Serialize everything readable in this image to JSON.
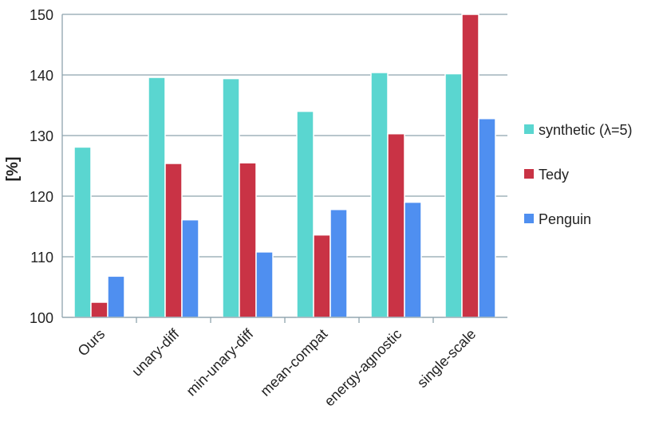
{
  "chart_data": {
    "type": "bar",
    "title": "",
    "xlabel": "",
    "ylabel": "[%]",
    "ylim": [
      100,
      150
    ],
    "yticks": [
      100,
      110,
      120,
      130,
      140,
      150
    ],
    "grid": true,
    "legend_position": "right",
    "categories": [
      "Ours",
      "unary-diff",
      "min-unary-diff",
      "mean-compat",
      "energy-agnostic",
      "single-scale"
    ],
    "series": [
      {
        "name": "synthetic (λ=5)",
        "color": "#5ad6d0",
        "values": [
          128.1,
          139.6,
          139.4,
          134.0,
          140.4,
          140.2
        ]
      },
      {
        "name": "Tedy",
        "color": "#c93345",
        "values": [
          102.5,
          125.4,
          125.5,
          113.6,
          130.3,
          150.0
        ]
      },
      {
        "name": "Penguin",
        "color": "#4f8ff0",
        "values": [
          106.8,
          116.1,
          110.8,
          117.8,
          119.0,
          132.8
        ]
      }
    ]
  }
}
